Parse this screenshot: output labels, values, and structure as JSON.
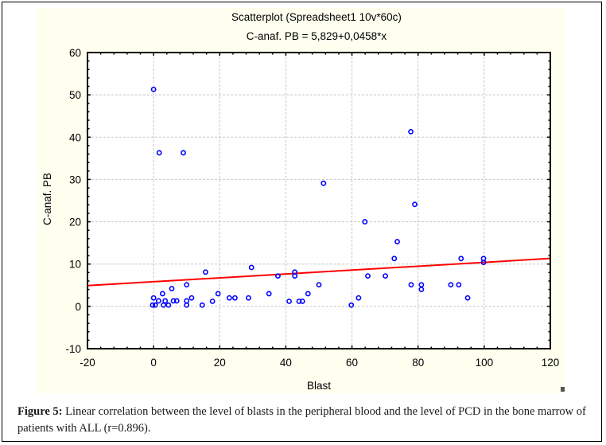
{
  "chart_data": {
    "type": "scatter",
    "title": "Scatterplot (Spreadsheet1 10v*60c)",
    "subtitle": "C-anaf. PB = 5,829+0,0458*x",
    "xlabel": "Blast",
    "ylabel": "C-anaf. PB",
    "xlim": [
      -20,
      120
    ],
    "ylim": [
      -10,
      60
    ],
    "xticks": [
      -20,
      0,
      20,
      40,
      60,
      80,
      100,
      120
    ],
    "xtick_labels": [
      "-20",
      "0",
      "20",
      "40",
      "60",
      "80",
      "100",
      "120"
    ],
    "yticks": [
      -10,
      0,
      10,
      20,
      30,
      40,
      50,
      60
    ],
    "ytick_labels": [
      "-10",
      "0",
      "10",
      "20",
      "30",
      "40",
      "50",
      "60"
    ],
    "grid": true,
    "regression": {
      "intercept": 5.829,
      "slope": 0.0458,
      "color": "#ff0000"
    },
    "marker_color": "#0000ff",
    "points": [
      [
        0,
        51.3
      ],
      [
        1.7,
        36.3
      ],
      [
        9,
        36.3
      ],
      [
        0,
        2
      ],
      [
        -0.3,
        0.3
      ],
      [
        0.5,
        0.3
      ],
      [
        1.5,
        1.3
      ],
      [
        2.7,
        3
      ],
      [
        3,
        0.3
      ],
      [
        3.5,
        1.3
      ],
      [
        4.5,
        0.3
      ],
      [
        5.5,
        4.2
      ],
      [
        6,
        1.3
      ],
      [
        7,
        1.3
      ],
      [
        10,
        5.1
      ],
      [
        10,
        1.3
      ],
      [
        10,
        0.3
      ],
      [
        11.5,
        2
      ],
      [
        14.7,
        0.3
      ],
      [
        15.7,
        8.1
      ],
      [
        17.8,
        1.2
      ],
      [
        19.5,
        3
      ],
      [
        22.9,
        2
      ],
      [
        24.6,
        2
      ],
      [
        28.7,
        2
      ],
      [
        29.6,
        9.2
      ],
      [
        34.9,
        3
      ],
      [
        37.6,
        7.2
      ],
      [
        41,
        1.2
      ],
      [
        42.7,
        8.1
      ],
      [
        42.7,
        7.2
      ],
      [
        44,
        1.2
      ],
      [
        45,
        1.2
      ],
      [
        46.7,
        3
      ],
      [
        50,
        5.1
      ],
      [
        51.4,
        29.1
      ],
      [
        59.8,
        0.3
      ],
      [
        62,
        2
      ],
      [
        63.9,
        20
      ],
      [
        64.8,
        7.2
      ],
      [
        70.1,
        7.2
      ],
      [
        72.8,
        11.3
      ],
      [
        73.7,
        15.3
      ],
      [
        77.8,
        41.3
      ],
      [
        77.9,
        5.1
      ],
      [
        79,
        24.1
      ],
      [
        81,
        5.1
      ],
      [
        81,
        4
      ],
      [
        89.9,
        5.1
      ],
      [
        92.3,
        5.1
      ],
      [
        93,
        11.3
      ],
      [
        95,
        2
      ],
      [
        99.8,
        11.3
      ],
      [
        99.8,
        10.4
      ]
    ]
  },
  "caption": {
    "label": "Figure 5:",
    "text": " Linear correlation between the level of blasts in the peripheral blood and the level of PCD in the bone marrow of patients with ALL (r=0.896)."
  }
}
